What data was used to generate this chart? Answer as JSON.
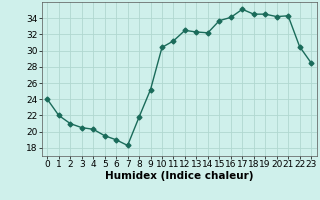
{
  "x": [
    0,
    1,
    2,
    3,
    4,
    5,
    6,
    7,
    8,
    9,
    10,
    11,
    12,
    13,
    14,
    15,
    16,
    17,
    18,
    19,
    20,
    21,
    22,
    23
  ],
  "y": [
    24,
    22,
    21,
    20.5,
    20.3,
    19.5,
    19,
    18.3,
    21.8,
    25.2,
    30.4,
    31.2,
    32.5,
    32.3,
    32.2,
    33.7,
    34.1,
    35.1,
    34.5,
    34.5,
    34.2,
    34.3,
    30.5,
    28.5
  ],
  "line_color": "#1a6b5a",
  "marker": "D",
  "marker_size": 2.5,
  "bg_color": "#cff0eb",
  "grid_color": "#b0d8d0",
  "xlabel": "Humidex (Indice chaleur)",
  "ylim": [
    17,
    36
  ],
  "xlim": [
    -0.5,
    23.5
  ],
  "yticks": [
    18,
    20,
    22,
    24,
    26,
    28,
    30,
    32,
    34
  ],
  "xticks": [
    0,
    1,
    2,
    3,
    4,
    5,
    6,
    7,
    8,
    9,
    10,
    11,
    12,
    13,
    14,
    15,
    16,
    17,
    18,
    19,
    20,
    21,
    22,
    23
  ],
  "xlabel_fontsize": 7.5,
  "tick_fontsize": 6.5,
  "line_width": 1.0
}
